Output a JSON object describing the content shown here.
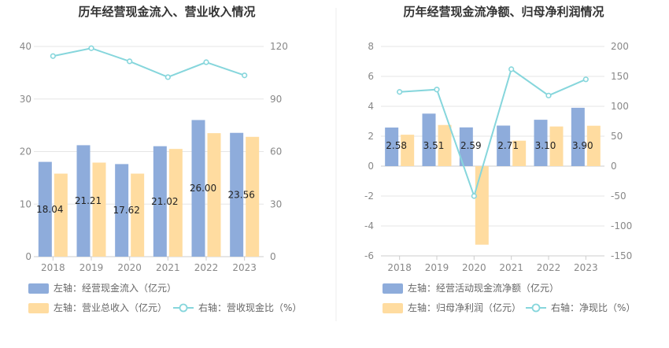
{
  "chart_data": [
    {
      "type": "bar",
      "title": "历年经营现金流入、营业收入情况",
      "categories": [
        "2018",
        "2019",
        "2020",
        "2021",
        "2022",
        "2023"
      ],
      "y_left": {
        "ylim": [
          0,
          40
        ],
        "ticks": [
          "0",
          "10",
          "20",
          "30",
          "40"
        ]
      },
      "y_right": {
        "ylim": [
          0,
          120
        ],
        "ticks": [
          "0",
          "30",
          "60",
          "90",
          "120"
        ]
      },
      "series": [
        {
          "name": "左轴：经营现金流入（亿元）",
          "axis": "left",
          "kind": "bar",
          "color": "#8eacdb",
          "values": [
            18.04,
            21.21,
            17.62,
            21.02,
            26.0,
            23.56
          ],
          "labels": [
            "18.04",
            "21.21",
            "17.62",
            "21.02",
            "26.00",
            "23.56"
          ]
        },
        {
          "name": "左轴：营业总收入（亿元）",
          "axis": "left",
          "kind": "bar",
          "color": "#ffdca0",
          "values": [
            15.8,
            17.9,
            15.8,
            20.5,
            23.5,
            22.8
          ]
        },
        {
          "name": "右轴：营收现金比（%）",
          "axis": "right",
          "kind": "line",
          "color": "#86d6dc",
          "values": [
            114.5,
            119.0,
            111.5,
            102.5,
            111.0,
            103.5
          ]
        }
      ]
    },
    {
      "type": "bar",
      "title": "历年经营现金流净额、归母净利润情况",
      "categories": [
        "2018",
        "2019",
        "2020",
        "2021",
        "2022",
        "2023"
      ],
      "y_left": {
        "ylim": [
          -6,
          8
        ],
        "ticks": [
          "-6",
          "-4",
          "-2",
          "0",
          "2",
          "4",
          "6",
          "8"
        ]
      },
      "y_right": {
        "ylim": [
          -150,
          200
        ],
        "ticks": [
          "-150",
          "-100",
          "-50",
          "0",
          "50",
          "100",
          "150",
          "200"
        ]
      },
      "series": [
        {
          "name": "左轴：经营活动现金流净额（亿元）",
          "axis": "left",
          "kind": "bar",
          "color": "#8eacdb",
          "values": [
            2.58,
            3.51,
            2.59,
            2.71,
            3.1,
            3.9
          ],
          "labels": [
            "2.58",
            "3.51",
            "2.59",
            "2.71",
            "3.10",
            "3.90"
          ]
        },
        {
          "name": "左轴：归母净利润（亿元）",
          "axis": "left",
          "kind": "bar",
          "color": "#ffdca0",
          "values": [
            2.1,
            2.75,
            -5.25,
            1.7,
            2.65,
            2.7
          ]
        },
        {
          "name": "右轴：净现比（%）",
          "axis": "right",
          "kind": "line",
          "color": "#86d6dc",
          "values": [
            124,
            128,
            -50,
            162,
            118,
            145
          ]
        }
      ]
    }
  ]
}
